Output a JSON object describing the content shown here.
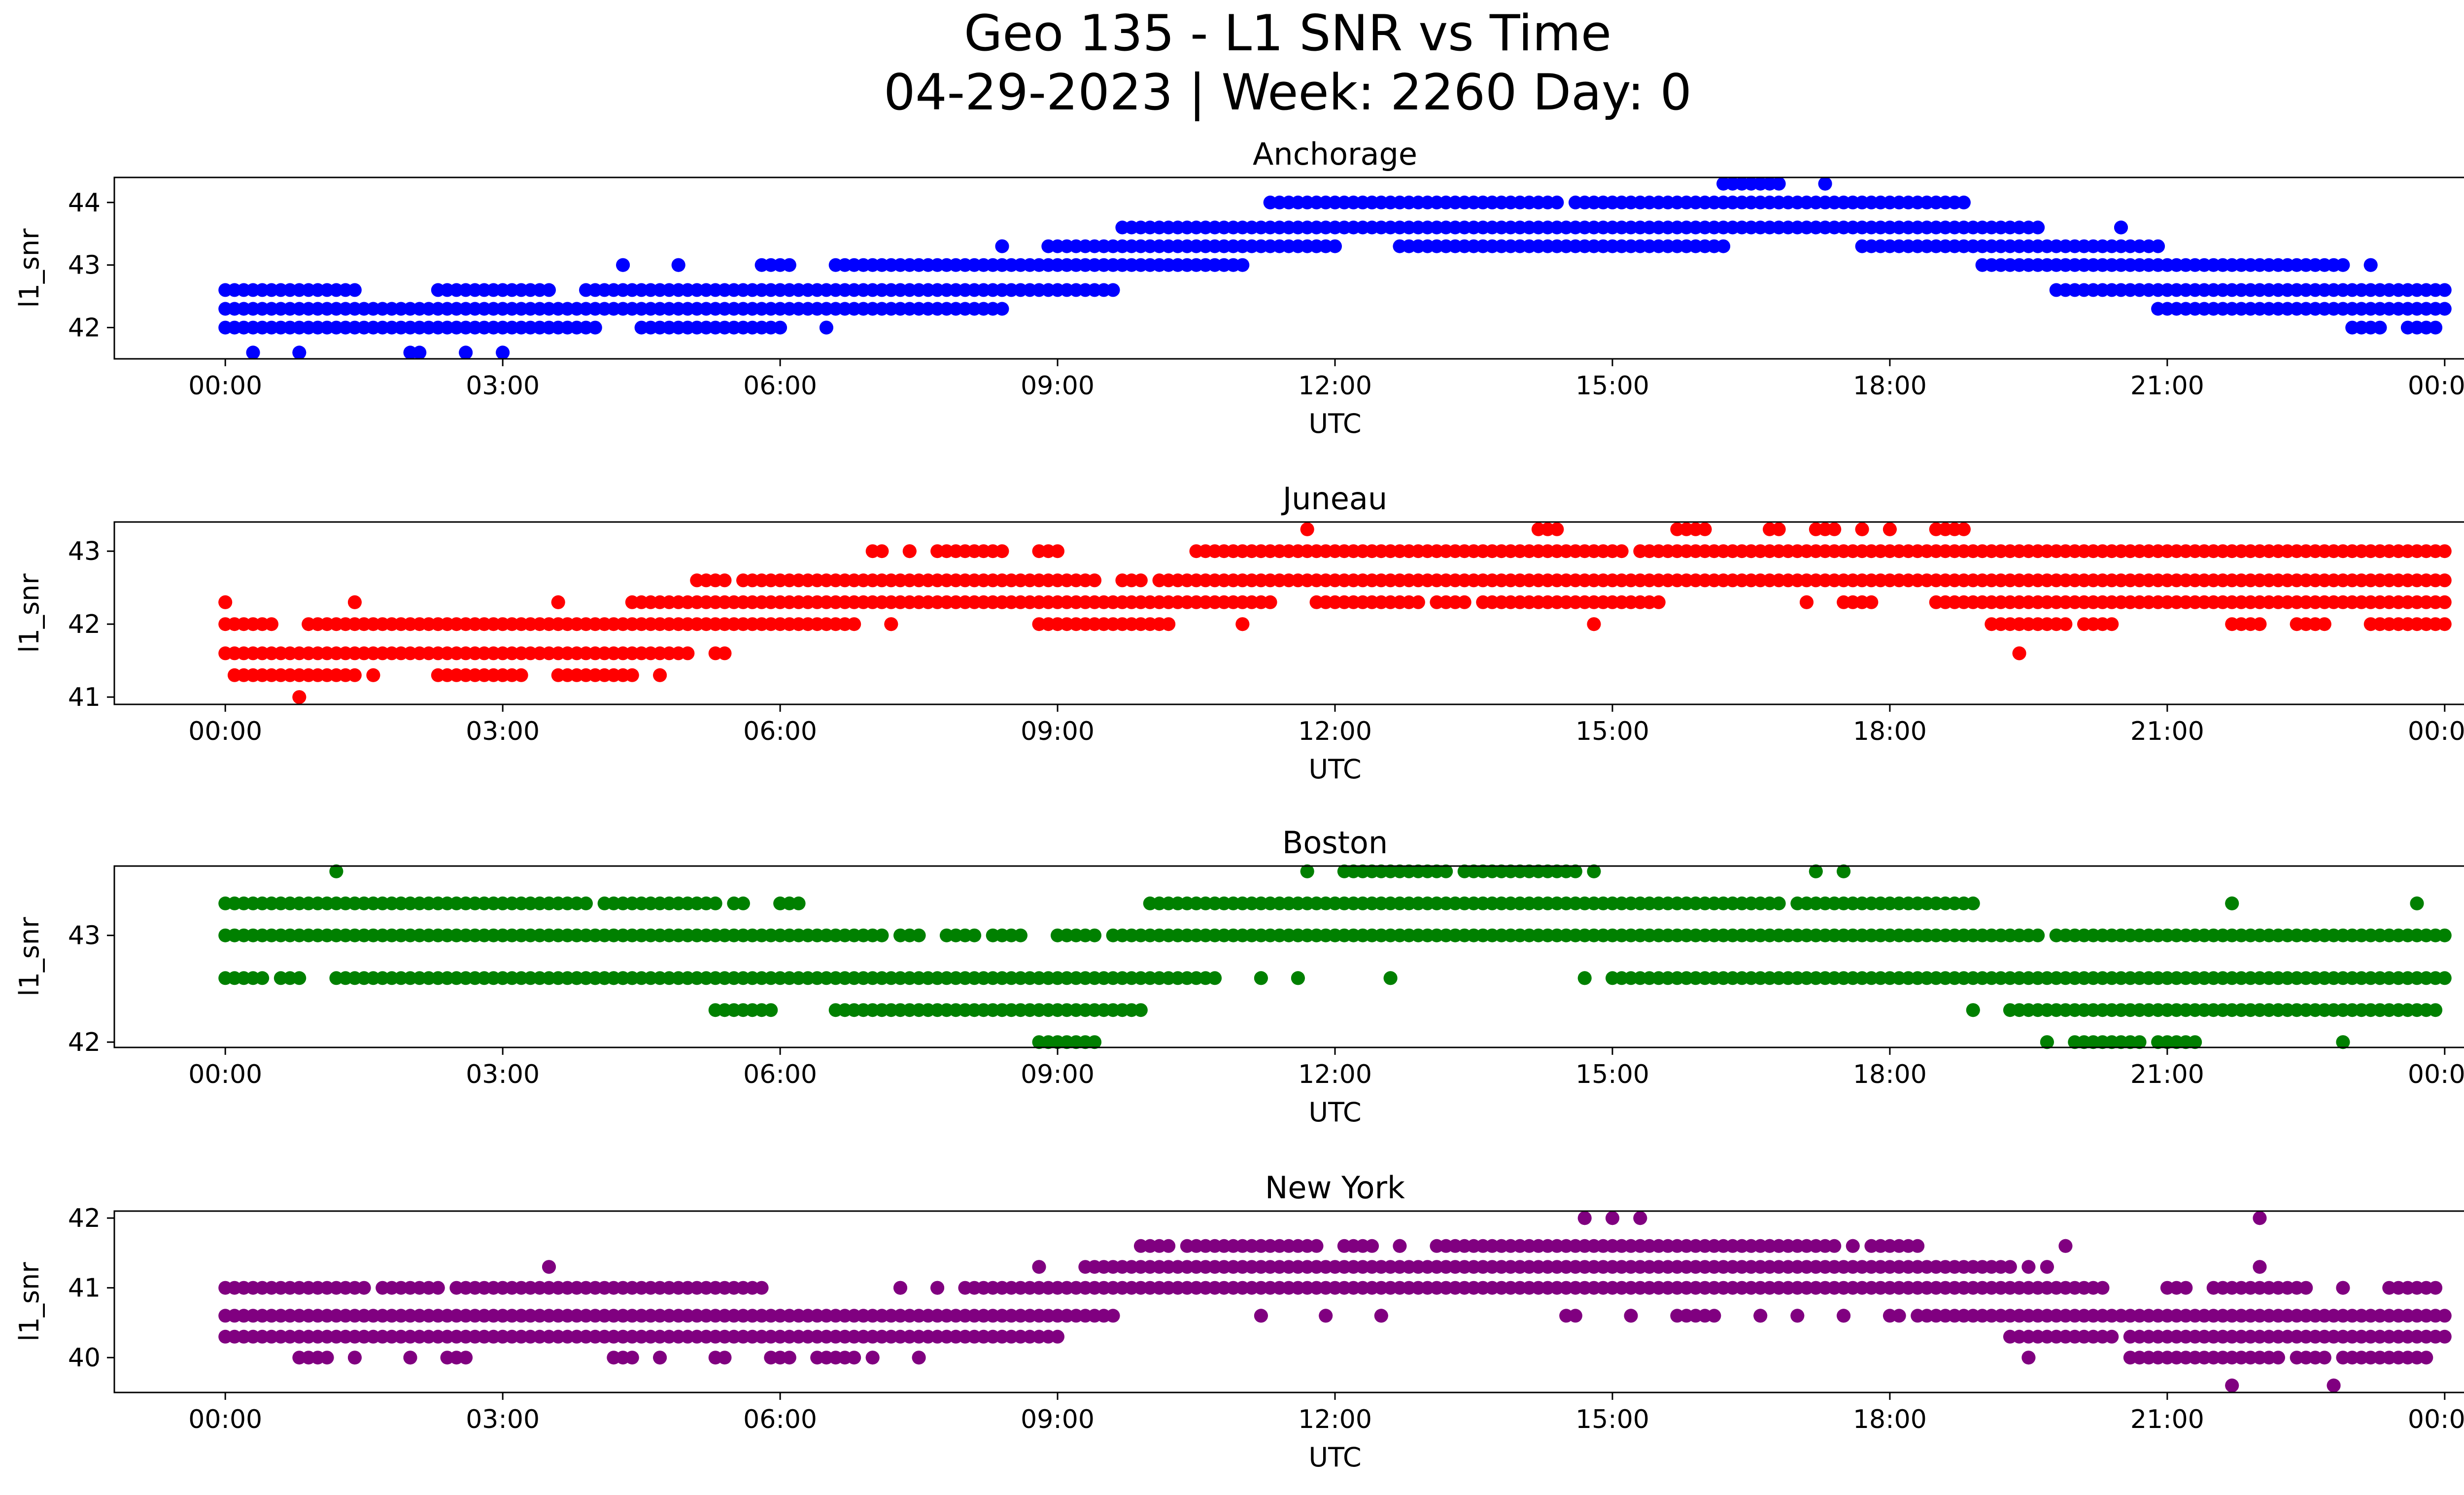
{
  "title_line1": "Geo 135 - L1 SNR vs Time",
  "title_line2": "04-29-2023 | Week: 2260 Day: 0",
  "chart_data": [
    {
      "type": "scatter",
      "title": "Anchorage",
      "xlabel": "UTC",
      "ylabel": "l1_snr",
      "color": "#0000ff",
      "x_ticks": [
        "00:00",
        "03:00",
        "06:00",
        "09:00",
        "12:00",
        "15:00",
        "18:00",
        "21:00",
        "00:00"
      ],
      "y_ticks": [
        42,
        43,
        44
      ],
      "xlim_hours": [
        -1.2,
        25.2
      ],
      "ylim": [
        41.5,
        44.4
      ],
      "grid": false,
      "runs": [
        {
          "y": 42.0,
          "segments": [
            [
              0.0,
              4.0
            ],
            [
              4.5,
              6.0
            ],
            [
              6.5,
              6.5
            ]
          ]
        },
        {
          "y": 42.3,
          "segments": [
            [
              0.0,
              8.4
            ]
          ]
        },
        {
          "y": 42.6,
          "segments": [
            [
              0.0,
              1.4
            ],
            [
              2.3,
              3.5
            ],
            [
              3.9,
              9.6
            ],
            [
              19.8,
              24.0
            ]
          ]
        },
        {
          "y": 43.0,
          "segments": [
            [
              4.3,
              4.3
            ],
            [
              4.9,
              4.9
            ],
            [
              5.8,
              6.1
            ],
            [
              6.6,
              7.8
            ],
            [
              7.9,
              11.0
            ],
            [
              19.0,
              22.9
            ],
            [
              23.2,
              23.2
            ]
          ]
        },
        {
          "y": 43.3,
          "segments": [
            [
              8.4,
              8.4
            ],
            [
              8.9,
              12.0
            ],
            [
              12.7,
              16.2
            ],
            [
              17.7,
              20.5
            ],
            [
              20.6,
              20.9
            ]
          ]
        },
        {
          "y": 43.6,
          "segments": [
            [
              9.7,
              19.6
            ],
            [
              20.5,
              20.5
            ]
          ]
        },
        {
          "y": 44.0,
          "segments": [
            [
              11.3,
              14.4
            ],
            [
              14.6,
              18.8
            ]
          ]
        },
        {
          "y": 44.3,
          "segments": [
            [
              16.2,
              16.8
            ],
            [
              17.3,
              17.3
            ]
          ]
        },
        {
          "y": 41.6,
          "segments": [
            [
              0.3,
              0.3
            ],
            [
              0.8,
              0.8
            ],
            [
              2.0,
              2.1
            ],
            [
              2.6,
              2.6
            ],
            [
              3.0,
              3.0
            ]
          ]
        },
        {
          "y": 42.3,
          "segments": [
            [
              20.9,
              24.0
            ]
          ]
        },
        {
          "y": 42.0,
          "segments": [
            [
              23.0,
              23.3
            ],
            [
              23.6,
              23.9
            ]
          ]
        }
      ]
    },
    {
      "type": "scatter",
      "title": "Juneau",
      "xlabel": "UTC",
      "ylabel": "l1_snr",
      "color": "#ff0000",
      "x_ticks": [
        "00:00",
        "03:00",
        "06:00",
        "09:00",
        "12:00",
        "15:00",
        "18:00",
        "21:00",
        "00:00"
      ],
      "y_ticks": [
        41,
        42,
        43
      ],
      "xlim_hours": [
        -1.2,
        25.2
      ],
      "ylim": [
        40.9,
        43.4
      ],
      "grid": false,
      "runs": [
        {
          "y": 41.0,
          "segments": [
            [
              0.8,
              0.8
            ]
          ]
        },
        {
          "y": 41.3,
          "segments": [
            [
              0.1,
              1.4
            ],
            [
              1.6,
              1.6
            ],
            [
              2.3,
              3.2
            ],
            [
              3.6,
              4.4
            ],
            [
              4.7,
              4.7
            ]
          ]
        },
        {
          "y": 41.6,
          "segments": [
            [
              0.0,
              5.0
            ],
            [
              5.3,
              5.4
            ],
            [
              19.4,
              19.4
            ]
          ]
        },
        {
          "y": 42.0,
          "segments": [
            [
              0.0,
              0.5
            ],
            [
              0.9,
              2.5
            ],
            [
              2.6,
              6.8
            ],
            [
              7.2,
              7.2
            ],
            [
              8.8,
              10.2
            ],
            [
              11.0,
              11.0
            ],
            [
              14.8,
              14.8
            ],
            [
              19.1,
              19.9
            ],
            [
              20.1,
              20.4
            ],
            [
              21.7,
              22.0
            ],
            [
              22.4,
              22.7
            ],
            [
              23.2,
              23.6
            ],
            [
              23.6,
              24.0
            ]
          ]
        },
        {
          "y": 42.3,
          "segments": [
            [
              0.0,
              0.0
            ],
            [
              1.4,
              1.4
            ],
            [
              3.6,
              3.6
            ],
            [
              4.4,
              11.3
            ],
            [
              11.8,
              12.9
            ],
            [
              13.1,
              13.4
            ],
            [
              13.6,
              15.5
            ],
            [
              17.1,
              17.1
            ],
            [
              17.5,
              17.8
            ],
            [
              18.5,
              24.0
            ]
          ]
        },
        {
          "y": 42.6,
          "segments": [
            [
              5.1,
              5.4
            ],
            [
              5.6,
              9.4
            ],
            [
              9.7,
              9.9
            ],
            [
              10.1,
              24.0
            ]
          ]
        },
        {
          "y": 43.0,
          "segments": [
            [
              7.0,
              7.1
            ],
            [
              7.4,
              7.4
            ],
            [
              7.7,
              8.4
            ],
            [
              8.8,
              9.0
            ],
            [
              10.5,
              15.1
            ],
            [
              15.3,
              24.0
            ]
          ]
        },
        {
          "y": 43.3,
          "segments": [
            [
              11.7,
              11.7
            ],
            [
              14.2,
              14.4
            ],
            [
              15.7,
              16.0
            ],
            [
              16.7,
              16.8
            ],
            [
              17.2,
              17.4
            ],
            [
              17.7,
              17.7
            ],
            [
              18.0,
              18.0
            ],
            [
              18.5,
              18.8
            ]
          ]
        }
      ]
    },
    {
      "type": "scatter",
      "title": "Boston",
      "xlabel": "UTC",
      "ylabel": "l1_snr",
      "color": "#008000",
      "x_ticks": [
        "00:00",
        "03:00",
        "06:00",
        "09:00",
        "12:00",
        "15:00",
        "18:00",
        "21:00",
        "00:00"
      ],
      "y_ticks": [
        42,
        43
      ],
      "xlim_hours": [
        -1.2,
        25.2
      ],
      "ylim": [
        41.95,
        43.65
      ],
      "grid": false,
      "runs": [
        {
          "y": 42.0,
          "segments": [
            [
              8.8,
              9.4
            ],
            [
              19.7,
              19.7
            ],
            [
              20.0,
              20.7
            ],
            [
              20.9,
              21.3
            ],
            [
              22.9,
              22.9
            ]
          ]
        },
        {
          "y": 42.3,
          "segments": [
            [
              5.3,
              5.9
            ],
            [
              6.6,
              9.9
            ],
            [
              18.9,
              18.9
            ],
            [
              19.3,
              23.9
            ]
          ]
        },
        {
          "y": 42.6,
          "segments": [
            [
              0.0,
              0.4
            ],
            [
              0.6,
              0.8
            ],
            [
              1.2,
              4.4
            ],
            [
              3.8,
              10.7
            ],
            [
              11.2,
              11.2
            ],
            [
              11.6,
              11.6
            ],
            [
              12.6,
              12.6
            ],
            [
              14.7,
              14.7
            ],
            [
              15.0,
              24.0
            ]
          ]
        },
        {
          "y": 43.0,
          "segments": [
            [
              0.0,
              7.1
            ],
            [
              7.3,
              7.5
            ],
            [
              7.8,
              8.1
            ],
            [
              8.3,
              8.6
            ],
            [
              9.0,
              9.4
            ],
            [
              9.6,
              19.6
            ],
            [
              19.8,
              20.2
            ],
            [
              20.3,
              20.5
            ],
            [
              20.6,
              24.0
            ]
          ]
        },
        {
          "y": 43.3,
          "segments": [
            [
              0.0,
              3.9
            ],
            [
              4.1,
              5.3
            ],
            [
              5.5,
              5.6
            ],
            [
              6.0,
              6.2
            ],
            [
              10.0,
              10.2
            ],
            [
              10.3,
              16.8
            ],
            [
              17.0,
              18.9
            ],
            [
              21.7,
              21.7
            ],
            [
              23.7,
              23.7
            ]
          ]
        },
        {
          "y": 43.6,
          "segments": [
            [
              1.2,
              1.2
            ],
            [
              11.7,
              11.7
            ],
            [
              12.1,
              13.2
            ],
            [
              13.4,
              14.0
            ],
            [
              14.1,
              14.6
            ],
            [
              14.8,
              14.8
            ],
            [
              17.2,
              17.2
            ],
            [
              17.5,
              17.5
            ]
          ]
        }
      ]
    },
    {
      "type": "scatter",
      "title": "New York",
      "xlabel": "UTC",
      "ylabel": "l1_snr",
      "color": "#800080",
      "x_ticks": [
        "00:00",
        "03:00",
        "06:00",
        "09:00",
        "12:00",
        "15:00",
        "18:00",
        "21:00",
        "00:00"
      ],
      "y_ticks": [
        40,
        41,
        42
      ],
      "xlim_hours": [
        -1.2,
        25.2
      ],
      "ylim": [
        39.5,
        42.1
      ],
      "grid": false,
      "runs": [
        {
          "y": 39.6,
          "segments": [
            [
              21.7,
              21.7
            ],
            [
              22.8,
              22.8
            ]
          ]
        },
        {
          "y": 40.0,
          "segments": [
            [
              0.8,
              1.1
            ],
            [
              1.4,
              1.4
            ],
            [
              2.0,
              2.0
            ],
            [
              2.4,
              2.6
            ],
            [
              4.2,
              4.4
            ],
            [
              4.7,
              4.7
            ],
            [
              5.3,
              5.4
            ],
            [
              5.9,
              6.1
            ],
            [
              6.4,
              6.8
            ],
            [
              7.0,
              7.0
            ],
            [
              7.5,
              7.5
            ],
            [
              19.5,
              19.5
            ],
            [
              20.6,
              21.0
            ],
            [
              21.1,
              22.2
            ],
            [
              22.4,
              22.7
            ],
            [
              22.9,
              23.8
            ]
          ]
        },
        {
          "y": 40.3,
          "segments": [
            [
              0.0,
              3.7
            ],
            [
              3.8,
              9.0
            ],
            [
              19.3,
              20.4
            ],
            [
              20.6,
              24.0
            ]
          ]
        },
        {
          "y": 40.6,
          "segments": [
            [
              0.0,
              9.6
            ],
            [
              11.2,
              11.2
            ],
            [
              11.9,
              11.9
            ],
            [
              12.5,
              12.5
            ],
            [
              14.5,
              14.6
            ],
            [
              15.2,
              15.2
            ],
            [
              15.7,
              16.1
            ],
            [
              16.6,
              16.6
            ],
            [
              17.0,
              17.0
            ],
            [
              17.5,
              17.5
            ],
            [
              18.0,
              18.1
            ],
            [
              18.3,
              24.0
            ]
          ]
        },
        {
          "y": 41.0,
          "segments": [
            [
              0.0,
              1.5
            ],
            [
              1.7,
              2.3
            ],
            [
              2.5,
              5.8
            ],
            [
              7.3,
              7.3
            ],
            [
              7.7,
              7.7
            ],
            [
              8.0,
              18.9
            ],
            [
              19.0,
              20.3
            ],
            [
              21.0,
              21.2
            ],
            [
              21.5,
              22.0
            ],
            [
              22.1,
              22.5
            ],
            [
              22.9,
              22.9
            ],
            [
              23.4,
              23.9
            ]
          ]
        },
        {
          "y": 41.3,
          "segments": [
            [
              3.5,
              3.5
            ],
            [
              8.8,
              8.8
            ],
            [
              9.3,
              19.3
            ],
            [
              19.5,
              19.5
            ],
            [
              19.7,
              19.7
            ],
            [
              22.0,
              22.0
            ]
          ]
        },
        {
          "y": 41.6,
          "segments": [
            [
              9.9,
              10.2
            ],
            [
              10.4,
              10.7
            ],
            [
              10.8,
              11.8
            ],
            [
              12.1,
              12.4
            ],
            [
              12.7,
              12.7
            ],
            [
              13.1,
              16.8
            ],
            [
              16.7,
              17.4
            ],
            [
              17.6,
              17.6
            ],
            [
              17.8,
              18.3
            ],
            [
              19.9,
              19.9
            ]
          ]
        },
        {
          "y": 42.0,
          "segments": [
            [
              14.7,
              14.7
            ],
            [
              15.0,
              15.0
            ],
            [
              15.3,
              15.3
            ],
            [
              22.0,
              22.0
            ]
          ]
        }
      ]
    }
  ]
}
